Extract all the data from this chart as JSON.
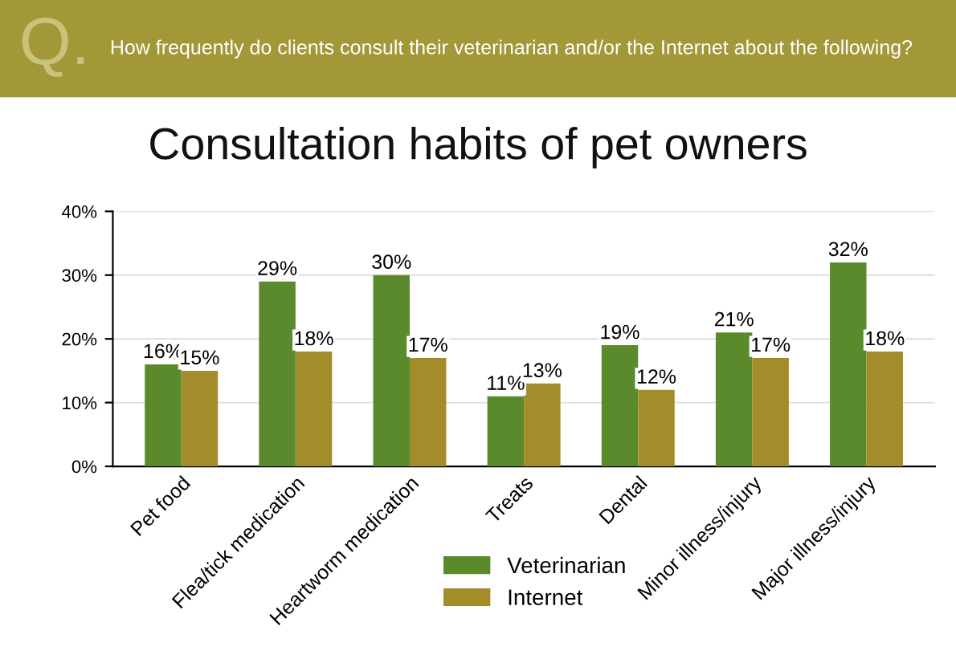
{
  "chart_data": {
    "type": "bar",
    "title": "Consultation habits of pet owners",
    "subtitle": "How frequently do clients consult their veterinarian and/or the Internet about the following?",
    "annotations": [
      "Q."
    ],
    "categories": [
      "Pet food",
      "Flea/tick medication",
      "Heartworm medication",
      "Treats",
      "Dental",
      "Minor illness/injury",
      "Major illness/injury"
    ],
    "series": [
      {
        "name": "Veterinarian",
        "color": "#5b8a2c",
        "values": [
          16,
          29,
          30,
          11,
          19,
          21,
          32
        ],
        "value_labels": [
          "16%",
          "29%",
          "30%",
          "11%",
          "19%",
          "21%",
          "32%"
        ]
      },
      {
        "name": "Internet",
        "color": "#a58c2a",
        "values": [
          15,
          18,
          17,
          13,
          12,
          17,
          18
        ],
        "value_labels": [
          "15%",
          "18%",
          "17%",
          "13%",
          "12%",
          "17%",
          "18%"
        ]
      }
    ],
    "ylim": [
      0,
      40
    ],
    "yticks": [
      {
        "value": 0,
        "label": "0%"
      },
      {
        "value": 10,
        "label": "10%"
      },
      {
        "value": 20,
        "label": "20%"
      },
      {
        "value": 30,
        "label": "30%"
      },
      {
        "value": 40,
        "label": "40%"
      }
    ],
    "grid": "y",
    "legend": "bottom"
  }
}
